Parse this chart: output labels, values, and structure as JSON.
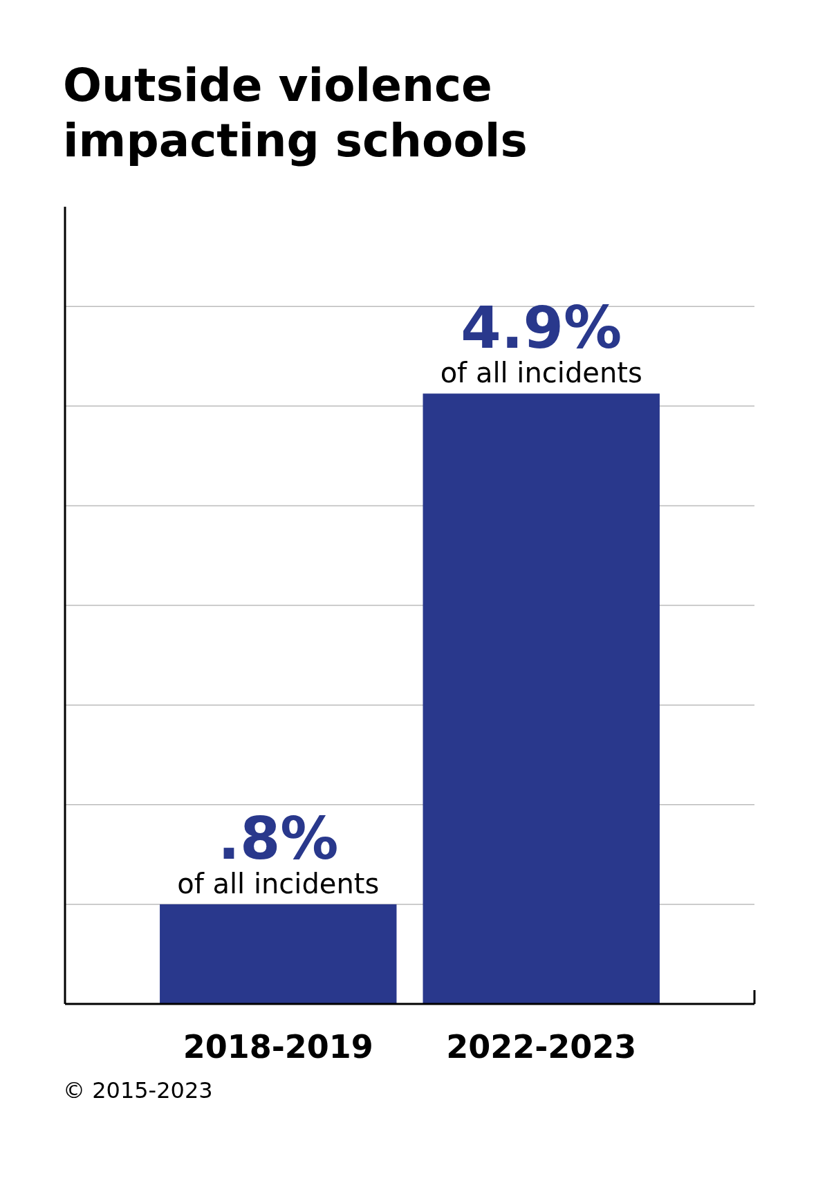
{
  "chart_data": {
    "type": "bar",
    "title": "Outside violence impacting schools",
    "categories": [
      "2018-2019",
      "2022-2023"
    ],
    "series": [
      {
        "color": "#29388c",
        "values": [
          0.8,
          4.9
        ],
        "value_labels": [
          ".8%",
          "4.9%"
        ]
      }
    ],
    "annotations": [
      {
        "text": "of all incidents",
        "x": "2018-2019",
        "y": 0.8
      },
      {
        "text": "of all incidents",
        "x": "2022-2023",
        "y": 4.9
      },
      "© 2015-2023"
    ],
    "ylim": [
      0,
      6.4
    ],
    "yticks": [
      {
        "value": 0.8,
        "label": null
      },
      {
        "value": 1.6,
        "label": null
      },
      {
        "value": 2.4,
        "label": null
      },
      {
        "value": 3.2,
        "label": null
      },
      {
        "value": 4.0,
        "label": null
      },
      {
        "value": 4.8,
        "label": null
      },
      {
        "value": 5.6,
        "label": null
      }
    ],
    "grid": "y",
    "tick_labels": "x"
  }
}
